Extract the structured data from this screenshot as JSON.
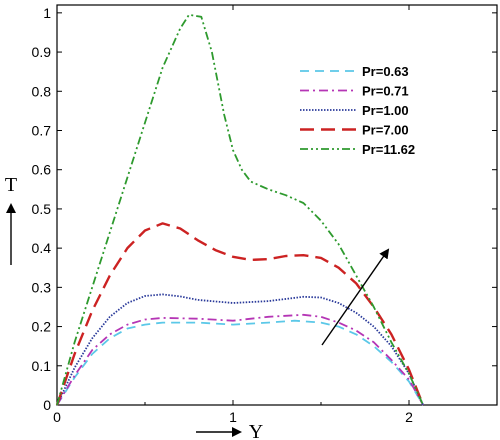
{
  "chart_data": {
    "type": "line",
    "xlabel": "Y",
    "ylabel": "T",
    "xlim": [
      0,
      2.5
    ],
    "ylim": [
      0,
      1.02
    ],
    "x_ticks": [
      "0",
      "1",
      "2"
    ],
    "y_ticks": [
      "0",
      "0.1",
      "0.2",
      "0.3",
      "0.4",
      "0.5",
      "0.6",
      "0.7",
      "0.8",
      "0.9",
      "1"
    ],
    "legend_position": "top-right",
    "grid": false,
    "series": [
      {
        "name": "Pr=0.63",
        "color": "#5bc8e8",
        "dash": "dashed",
        "points": [
          [
            0,
            0
          ],
          [
            0.1,
            0.07
          ],
          [
            0.2,
            0.13
          ],
          [
            0.3,
            0.17
          ],
          [
            0.4,
            0.195
          ],
          [
            0.5,
            0.205
          ],
          [
            0.6,
            0.21
          ],
          [
            0.8,
            0.21
          ],
          [
            1.0,
            0.205
          ],
          [
            1.2,
            0.21
          ],
          [
            1.35,
            0.215
          ],
          [
            1.5,
            0.21
          ],
          [
            1.6,
            0.2
          ],
          [
            1.7,
            0.18
          ],
          [
            1.8,
            0.15
          ],
          [
            1.9,
            0.11
          ],
          [
            2.0,
            0.06
          ],
          [
            2.08,
            0
          ]
        ]
      },
      {
        "name": "Pr=0.71",
        "color": "#b535b5",
        "dash": "dashdot",
        "points": [
          [
            0,
            0
          ],
          [
            0.1,
            0.075
          ],
          [
            0.2,
            0.14
          ],
          [
            0.3,
            0.18
          ],
          [
            0.4,
            0.205
          ],
          [
            0.5,
            0.218
          ],
          [
            0.6,
            0.222
          ],
          [
            0.8,
            0.22
          ],
          [
            1.0,
            0.215
          ],
          [
            1.2,
            0.225
          ],
          [
            1.4,
            0.23
          ],
          [
            1.5,
            0.225
          ],
          [
            1.6,
            0.21
          ],
          [
            1.7,
            0.19
          ],
          [
            1.8,
            0.16
          ],
          [
            1.9,
            0.115
          ],
          [
            2.0,
            0.065
          ],
          [
            2.08,
            0
          ]
        ]
      },
      {
        "name": "Pr=1.00",
        "color": "#2a3a9a",
        "dash": "dotted",
        "points": [
          [
            0,
            0
          ],
          [
            0.1,
            0.095
          ],
          [
            0.2,
            0.17
          ],
          [
            0.3,
            0.225
          ],
          [
            0.4,
            0.26
          ],
          [
            0.5,
            0.278
          ],
          [
            0.6,
            0.282
          ],
          [
            0.7,
            0.277
          ],
          [
            0.8,
            0.268
          ],
          [
            1.0,
            0.26
          ],
          [
            1.2,
            0.265
          ],
          [
            1.4,
            0.276
          ],
          [
            1.5,
            0.274
          ],
          [
            1.6,
            0.26
          ],
          [
            1.7,
            0.235
          ],
          [
            1.8,
            0.2
          ],
          [
            1.9,
            0.15
          ],
          [
            2.0,
            0.08
          ],
          [
            2.08,
            0
          ]
        ]
      },
      {
        "name": "Pr=7.00",
        "color": "#cc2222",
        "dash": "longdash",
        "points": [
          [
            0,
            0
          ],
          [
            0.1,
            0.13
          ],
          [
            0.2,
            0.24
          ],
          [
            0.3,
            0.33
          ],
          [
            0.4,
            0.4
          ],
          [
            0.5,
            0.445
          ],
          [
            0.6,
            0.463
          ],
          [
            0.7,
            0.45
          ],
          [
            0.8,
            0.42
          ],
          [
            0.9,
            0.395
          ],
          [
            1.0,
            0.378
          ],
          [
            1.1,
            0.37
          ],
          [
            1.2,
            0.372
          ],
          [
            1.3,
            0.38
          ],
          [
            1.4,
            0.382
          ],
          [
            1.5,
            0.375
          ],
          [
            1.6,
            0.35
          ],
          [
            1.7,
            0.31
          ],
          [
            1.8,
            0.25
          ],
          [
            1.9,
            0.18
          ],
          [
            2.0,
            0.09
          ],
          [
            2.08,
            0
          ]
        ]
      },
      {
        "name": "Pr=11.62",
        "color": "#2e9a2e",
        "dash": "dashdotdot",
        "points": [
          [
            0,
            0
          ],
          [
            0.1,
            0.16
          ],
          [
            0.2,
            0.3
          ],
          [
            0.3,
            0.44
          ],
          [
            0.4,
            0.58
          ],
          [
            0.5,
            0.72
          ],
          [
            0.6,
            0.86
          ],
          [
            0.7,
            0.96
          ],
          [
            0.75,
            0.995
          ],
          [
            0.82,
            0.99
          ],
          [
            0.88,
            0.9
          ],
          [
            0.95,
            0.74
          ],
          [
            1.0,
            0.65
          ],
          [
            1.05,
            0.6
          ],
          [
            1.1,
            0.57
          ],
          [
            1.2,
            0.55
          ],
          [
            1.3,
            0.535
          ],
          [
            1.4,
            0.515
          ],
          [
            1.5,
            0.47
          ],
          [
            1.6,
            0.41
          ],
          [
            1.7,
            0.33
          ],
          [
            1.8,
            0.25
          ],
          [
            1.9,
            0.16
          ],
          [
            2.0,
            0.08
          ],
          [
            2.08,
            0
          ]
        ]
      }
    ]
  }
}
